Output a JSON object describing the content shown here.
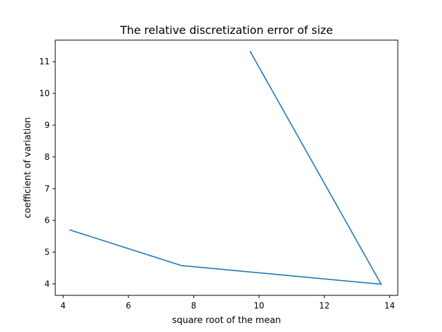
{
  "chart_data": {
    "type": "line",
    "title": "The relative discretization error of size",
    "xlabel": "square root of the mean",
    "ylabel": "coefficient of variation",
    "xlim": [
      3.76,
      14.25
    ],
    "ylim": [
      3.64,
      11.68
    ],
    "xticks": [
      4,
      6,
      8,
      10,
      12,
      14
    ],
    "yticks": [
      4,
      5,
      6,
      7,
      8,
      9,
      10,
      11
    ],
    "grid": false,
    "series": [
      {
        "color": "#1f77b4",
        "x": [
          9.73,
          13.74,
          7.62,
          4.21
        ],
        "y": [
          11.32,
          3.99,
          4.58,
          5.7
        ]
      }
    ]
  }
}
